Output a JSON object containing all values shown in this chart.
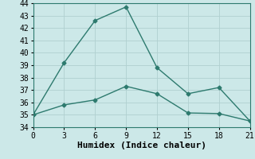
{
  "line1_x": [
    0,
    3,
    6,
    9,
    12,
    15,
    18,
    21
  ],
  "line1_y": [
    35.0,
    39.2,
    42.6,
    43.7,
    38.8,
    36.7,
    37.2,
    34.5
  ],
  "line2_x": [
    0,
    3,
    6,
    9,
    12,
    15,
    18,
    21
  ],
  "line2_y": [
    35.0,
    35.8,
    36.2,
    37.3,
    36.7,
    35.15,
    35.1,
    34.5
  ],
  "line_color": "#2d7a6e",
  "bg_color": "#cce8e8",
  "grid_color": "#b0d0d0",
  "xlabel": "Humidex (Indice chaleur)",
  "xlim": [
    0,
    21
  ],
  "ylim": [
    34,
    44
  ],
  "xticks": [
    0,
    3,
    6,
    9,
    12,
    15,
    18,
    21
  ],
  "yticks": [
    34,
    35,
    36,
    37,
    38,
    39,
    40,
    41,
    42,
    43,
    44
  ],
  "marker": "D",
  "marker_size": 2.5,
  "linewidth": 1.0,
  "xlabel_fontsize": 8,
  "tick_fontsize": 7,
  "font_family": "monospace"
}
